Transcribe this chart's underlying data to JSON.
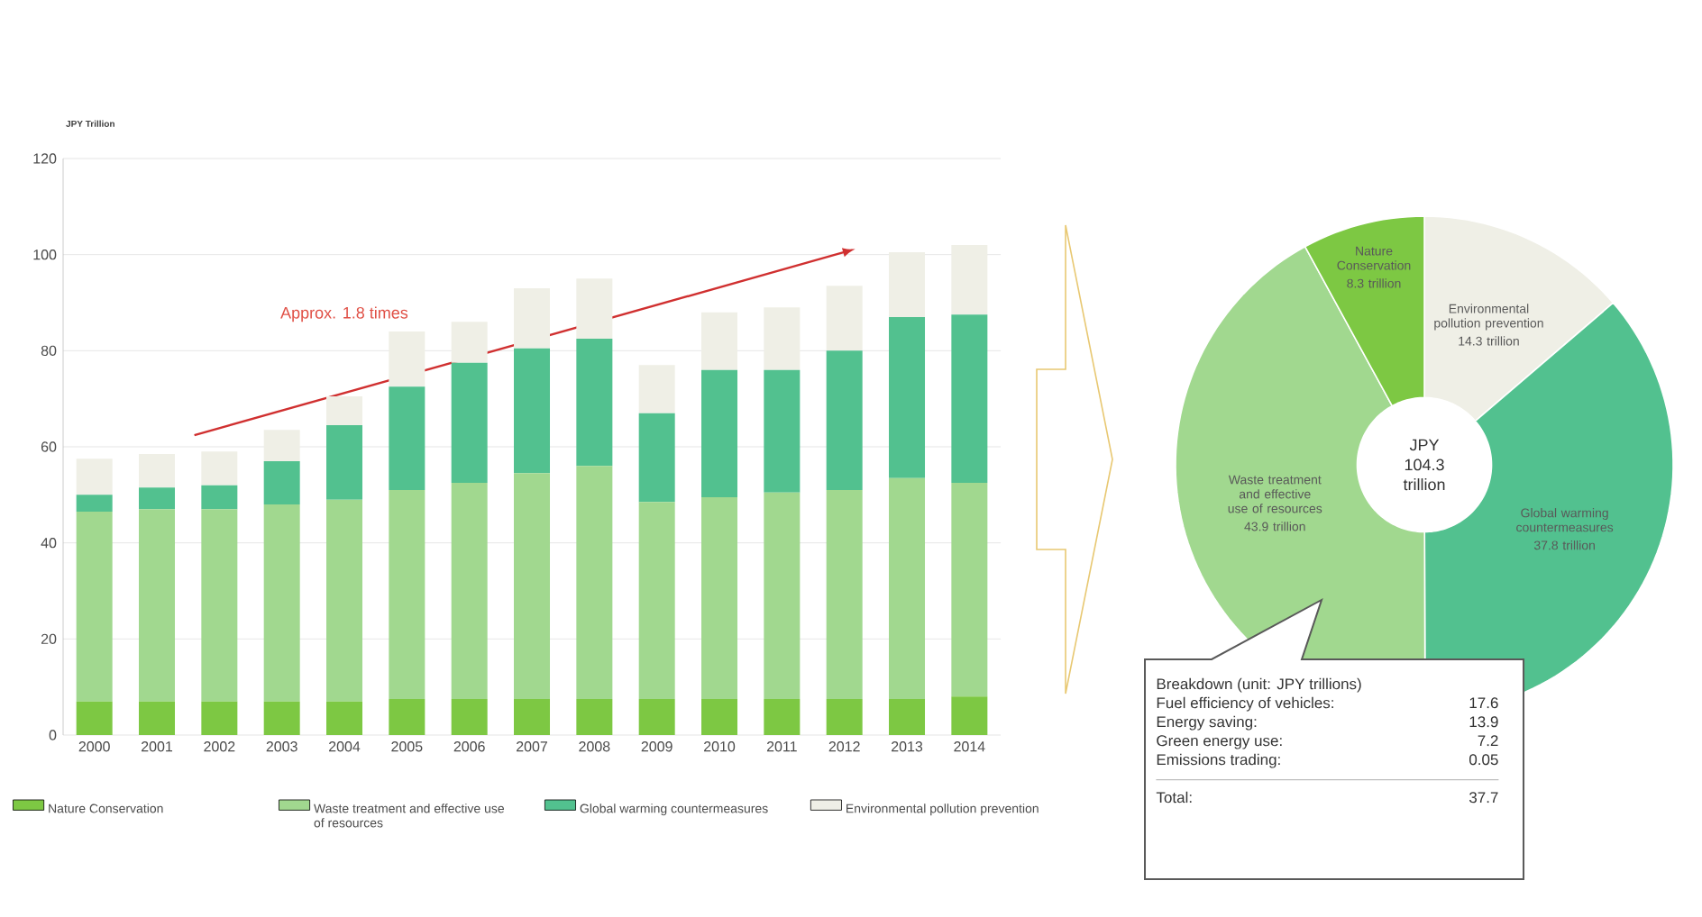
{
  "chart_data": [
    {
      "type": "bar",
      "stacked": true,
      "ylabel": "JPY Trillion",
      "categories": [
        "2000",
        "2001",
        "2002",
        "2003",
        "2004",
        "2005",
        "2006",
        "2007",
        "2008",
        "2009",
        "2010",
        "2011",
        "2012",
        "2013",
        "2014"
      ],
      "series": [
        {
          "name": "Nature Conservation",
          "color": "#7dc843",
          "values": [
            7,
            7,
            7,
            7,
            7,
            7.5,
            7.5,
            7.5,
            7.5,
            7.5,
            7.5,
            7.5,
            7.5,
            7.5,
            8
          ]
        },
        {
          "name": "Waste treatment and effective use of resources",
          "color": "#a1d88f",
          "values": [
            39.5,
            40,
            40,
            41,
            42,
            43.5,
            45,
            47,
            48.5,
            41,
            42,
            43,
            43.5,
            46,
            44.5
          ]
        },
        {
          "name": "Global warming countermeasures",
          "color": "#52c18f",
          "values": [
            3.5,
            4.5,
            5,
            9,
            15.5,
            21.5,
            25,
            26,
            26.5,
            18.5,
            26.5,
            25.5,
            29,
            33.5,
            35
          ]
        },
        {
          "name": "Environmental pollution prevention",
          "color": "#efefe6",
          "values": [
            7.5,
            7,
            7,
            6.5,
            6,
            11.5,
            8.5,
            12.5,
            12.5,
            10,
            12,
            13,
            13.5,
            13.5,
            14.5
          ]
        }
      ],
      "ylim": [
        0,
        120
      ],
      "yticks": [
        0,
        20,
        40,
        60,
        80,
        100,
        120
      ],
      "grid": "y",
      "legend": "bottom",
      "annotations": [
        "Approx. 1.8 times"
      ]
    },
    {
      "type": "donut",
      "categories": [
        "Environmental pollution prevention",
        "Global warming countermeasures",
        "Waste treatment and effective use of resources",
        "Nature Conservation"
      ],
      "values": [
        14.3,
        37.8,
        43.9,
        8.3
      ],
      "colors": [
        "#efefe6",
        "#52c18f",
        "#a1d88f",
        "#7dc843"
      ],
      "value_labels": [
        "14.3 trillion",
        "37.8 trillion",
        "43.9 trillion",
        "8.3 trillion"
      ],
      "annotations": [
        "JPY 104.3 trillion",
        "Breakdown (unit: JPY trillions)",
        "Fuel efficiency of vehicles:",
        "17.6",
        "Energy saving:",
        "13.9",
        "Green energy use:",
        "7.2",
        "Emissions trading:",
        "0.05",
        "Total:",
        "37.7"
      ]
    }
  ]
}
